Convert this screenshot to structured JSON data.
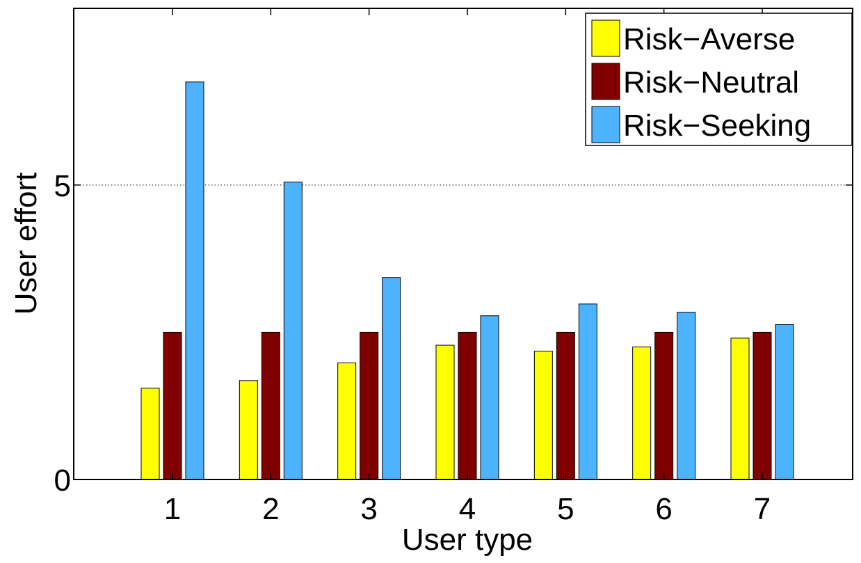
{
  "chart_data": {
    "type": "bar",
    "xlabel": "User type",
    "ylabel": "User effort",
    "categories": [
      "1",
      "2",
      "3",
      "4",
      "5",
      "6",
      "7"
    ],
    "ylim": [
      0,
      8
    ],
    "yticks": [
      0,
      5
    ],
    "ytick_labels": [
      "0",
      "5"
    ],
    "grid": "horizontal dotted line at y=5",
    "legend_position": "top-right",
    "series": [
      {
        "name": "Risk−Averse",
        "color": "#ffff00",
        "values": [
          1.55,
          1.68,
          1.98,
          2.28,
          2.18,
          2.25,
          2.4
        ]
      },
      {
        "name": "Risk−Neutral",
        "color": "#800000",
        "values": [
          2.5,
          2.5,
          2.5,
          2.5,
          2.5,
          2.5,
          2.5
        ]
      },
      {
        "name": "Risk−Seeking",
        "color": "#4db3ff",
        "values": [
          6.75,
          5.05,
          3.43,
          2.78,
          2.98,
          2.84,
          2.63
        ]
      }
    ]
  }
}
